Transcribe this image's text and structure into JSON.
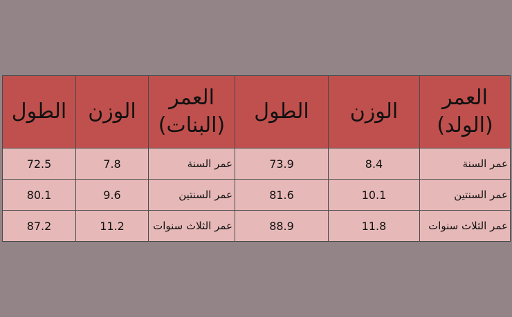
{
  "table": {
    "headers_left_to_right": [
      "الطول",
      "الوزن",
      "العمر (البنات)",
      "الطول",
      "الوزن",
      "العمر (الولد)"
    ],
    "header_girls_age_lines": [
      "العمر",
      "(البنات)"
    ],
    "header_boys_age_lines": [
      "العمر",
      "(الولد)"
    ],
    "rows": [
      {
        "girls_height": "72.5",
        "girls_weight": "7.8",
        "girls_age": "عمر السنة",
        "boys_height": "73.9",
        "boys_weight": "8.4",
        "boys_age": "عمر السنة"
      },
      {
        "girls_height": "80.1",
        "girls_weight": "9.6",
        "girls_age": "عمر السنتين",
        "boys_height": "81.6",
        "boys_weight": "10.1",
        "boys_age": "عمر السنتين"
      },
      {
        "girls_height": "87.2",
        "girls_weight": "11.2",
        "girls_age": "عمر الثلاث سنوات",
        "boys_height": "88.9",
        "boys_weight": "11.8",
        "boys_age": "عمر الثلاث سنوات"
      }
    ]
  },
  "colors": {
    "background": "#938587",
    "header_fill": "#c0504d",
    "body_fill": "#e6b9b8",
    "border": "#4a4a4a"
  }
}
